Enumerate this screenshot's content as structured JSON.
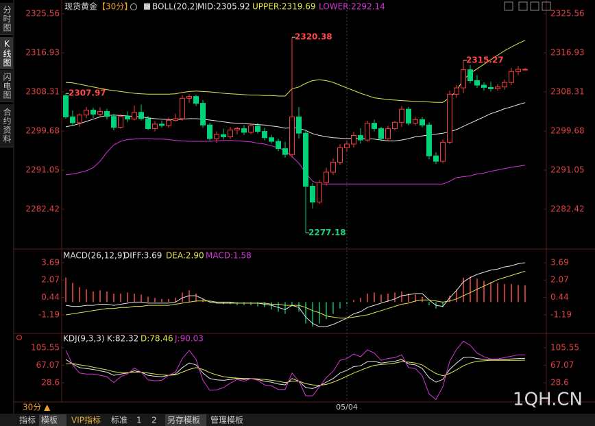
{
  "page": {
    "sidebar": [
      "分时图",
      "K线图",
      "闪电图",
      "合约资料"
    ],
    "period_button": "30分 ▲",
    "tabs": [
      "指标",
      "模板",
      "VIP指标",
      "标准",
      "1",
      "2",
      "另存模板",
      "管理模板"
    ],
    "watermark": "1QH.CN"
  },
  "chart_data": [
    {
      "type": "candlestick",
      "title": "现货黄金",
      "period": "【30分】",
      "indicator": "BOLL(20,2)",
      "up_color": "#ff3b3b",
      "down_color": "#00d27a",
      "categories": [
        null,
        null,
        null,
        null,
        null,
        null,
        null,
        null,
        null,
        null,
        null,
        null,
        null,
        null,
        null,
        null,
        null,
        null,
        null,
        null,
        null,
        null,
        null,
        null,
        null,
        null,
        null,
        null,
        null,
        null,
        null,
        null,
        null,
        null,
        null,
        null,
        null,
        null,
        null,
        null,
        null,
        "05/04",
        null,
        null,
        null,
        null,
        null,
        null,
        null,
        null,
        null,
        null,
        null,
        null,
        null,
        null,
        null,
        null,
        null,
        null,
        null,
        null,
        null,
        null,
        null,
        null,
        null,
        null
      ],
      "open": [
        2307.5,
        2302.8,
        2301.5,
        2303.2,
        2304.3,
        2303.4,
        2304.0,
        2302.9,
        2300.5,
        2302.9,
        2302.3,
        2303.8,
        2302.4,
        2300.2,
        2301.2,
        2300.9,
        2302.0,
        2302.4,
        2306.9,
        2307.3,
        2305.8,
        2301.0,
        2298.0,
        2298.9,
        2298.4,
        2299.9,
        2300.2,
        2299.4,
        2300.8,
        2299.6,
        2298.2,
        2297.4,
        2295.8,
        2294.5,
        2302.8,
        2299.2,
        2287.5,
        2284.0,
        2288.3,
        2290.6,
        2292.8,
        2296.0,
        2296.8,
        2298.7,
        2297.7,
        2301.4,
        2300.2,
        2298.0,
        2300.2,
        2301.6,
        2304.5,
        2301.4,
        2302.2,
        2301.0,
        2294.2,
        2293.0,
        2297.2,
        2307.8,
        2309.2,
        2313.2,
        2310.8,
        2309.8,
        2309.3,
        2309.0,
        2309.4,
        2310.4,
        2312.8,
        2313.3
      ],
      "high": [
        2307.97,
        2304.2,
        2303.6,
        2305.0,
        2304.8,
        2304.9,
        2304.6,
        2303.5,
        2303.4,
        2304.0,
        2305.3,
        2305.5,
        2303.0,
        2301.8,
        2302.0,
        2302.6,
        2303.5,
        2307.6,
        2307.8,
        2307.7,
        2306.5,
        2301.5,
        2299.6,
        2300.2,
        2300.6,
        2300.6,
        2301.0,
        2301.2,
        2301.5,
        2300.4,
        2298.8,
        2298.0,
        2297.3,
        2320.38,
        2305.0,
        2300.0,
        2288.2,
        2288.9,
        2291.6,
        2293.6,
        2296.8,
        2297.6,
        2299.5,
        2300.3,
        2302.0,
        2302.2,
        2300.6,
        2300.8,
        2302.0,
        2305.2,
        2305.0,
        2302.8,
        2302.8,
        2301.6,
        2295.0,
        2297.8,
        2308.6,
        2309.8,
        2315.27,
        2314.2,
        2312.0,
        2310.4,
        2310.6,
        2310.0,
        2311.0,
        2313.6,
        2314.0,
        2313.6
      ],
      "low": [
        2302.4,
        2300.8,
        2300.6,
        2302.5,
        2302.6,
        2302.8,
        2302.2,
        2299.8,
        2300.2,
        2301.6,
        2302.0,
        2302.0,
        2299.9,
        2299.6,
        2300.4,
        2300.4,
        2301.8,
        2302.0,
        2305.9,
        2305.2,
        2300.4,
        2297.4,
        2297.1,
        2297.8,
        2297.9,
        2298.9,
        2298.8,
        2299.0,
        2299.1,
        2297.6,
        2296.9,
        2295.2,
        2293.8,
        2294.0,
        2298.0,
        2277.18,
        2282.6,
        2283.6,
        2287.7,
        2290.0,
        2292.2,
        2295.2,
        2296.0,
        2296.9,
        2297.3,
        2299.6,
        2297.4,
        2297.5,
        2299.8,
        2300.6,
        2300.9,
        2300.9,
        2300.5,
        2293.4,
        2292.4,
        2292.6,
        2296.8,
        2307.0,
        2308.0,
        2310.2,
        2309.2,
        2308.6,
        2308.4,
        2308.6,
        2308.8,
        2309.8,
        2312.0,
        2313.0
      ],
      "close": [
        2302.8,
        2301.5,
        2303.2,
        2304.3,
        2303.4,
        2304.0,
        2302.9,
        2300.5,
        2302.9,
        2302.3,
        2303.8,
        2302.4,
        2300.2,
        2301.2,
        2300.9,
        2302.0,
        2302.4,
        2306.9,
        2307.3,
        2305.8,
        2301.0,
        2298.0,
        2298.9,
        2298.4,
        2299.9,
        2300.2,
        2299.4,
        2300.8,
        2299.6,
        2298.2,
        2297.4,
        2295.8,
        2294.5,
        2302.8,
        2299.2,
        2287.5,
        2284.0,
        2288.3,
        2290.6,
        2292.8,
        2296.0,
        2296.8,
        2298.7,
        2297.7,
        2301.4,
        2300.2,
        2298.0,
        2300.2,
        2301.6,
        2304.5,
        2301.4,
        2302.2,
        2301.0,
        2294.2,
        2293.0,
        2297.2,
        2307.8,
        2309.2,
        2313.2,
        2310.8,
        2309.8,
        2309.3,
        2309.0,
        2309.4,
        2310.4,
        2312.8,
        2313.3,
        2313.3
      ],
      "series": [
        {
          "name": "MID:2305.92",
          "color": "#e6e6e6",
          "values": [
            2300.6,
            2300.9,
            2301.3,
            2301.8,
            2302.3,
            2302.8,
            2303.1,
            2303.2,
            2303.1,
            2303.0,
            2302.9,
            2302.8,
            2302.6,
            2302.4,
            2302.3,
            2302.2,
            2302.2,
            2302.3,
            2302.4,
            2302.4,
            2302.3,
            2302.1,
            2301.9,
            2301.7,
            2301.5,
            2301.4,
            2301.3,
            2301.2,
            2301.1,
            2301.0,
            2300.8,
            2300.6,
            2300.3,
            2300.4,
            2300.3,
            2299.8,
            2299.1,
            2298.7,
            2298.4,
            2298.2,
            2298.1,
            2298.0,
            2298.1,
            2298.0,
            2298.0,
            2297.9,
            2297.7,
            2297.5,
            2297.5,
            2297.7,
            2298.0,
            2298.4,
            2298.6,
            2298.8,
            2299.0,
            2299.2,
            2299.5,
            2300.0,
            2300.7,
            2301.4,
            2302.1,
            2302.8,
            2303.5,
            2304.0,
            2304.6,
            2305.0,
            2305.5,
            2305.92
          ]
        },
        {
          "name": "UPPER:2319.69",
          "color": "#e4e44c",
          "values": [
            2310.4,
            2310.3,
            2310.0,
            2309.7,
            2309.4,
            2309.1,
            2308.8,
            2308.6,
            2308.4,
            2308.2,
            2308.0,
            2307.9,
            2307.8,
            2307.8,
            2307.8,
            2307.8,
            2307.9,
            2308.2,
            2308.4,
            2308.5,
            2308.4,
            2308.3,
            2308.2,
            2308.0,
            2307.9,
            2307.8,
            2307.7,
            2307.6,
            2307.6,
            2307.5,
            2307.5,
            2307.4,
            2307.4,
            2309.0,
            2309.4,
            2310.2,
            2310.8,
            2311.0,
            2310.8,
            2310.4,
            2309.8,
            2309.2,
            2308.6,
            2308.0,
            2307.5,
            2307.0,
            2306.8,
            2306.6,
            2306.5,
            2306.4,
            2306.3,
            2306.2,
            2306.2,
            2306.1,
            2306.0,
            2306.0,
            2307.0,
            2308.6,
            2311.0,
            2312.4,
            2313.4,
            2314.4,
            2315.4,
            2316.4,
            2317.4,
            2318.2,
            2319.0,
            2319.69
          ]
        },
        {
          "name": "LOWER:2292.14",
          "color": "#d535d5",
          "values": [
            2290.0,
            2290.2,
            2290.5,
            2290.9,
            2291.6,
            2293.0,
            2295.0,
            2296.6,
            2297.4,
            2297.8,
            2297.9,
            2298.0,
            2298.0,
            2297.9,
            2297.9,
            2297.8,
            2297.6,
            2297.5,
            2297.4,
            2297.4,
            2297.4,
            2297.4,
            2297.5,
            2297.6,
            2297.6,
            2297.5,
            2297.4,
            2297.3,
            2297.0,
            2296.8,
            2296.4,
            2296.0,
            2295.4,
            2294.0,
            2292.6,
            2290.4,
            2288.6,
            2288.0,
            2288.0,
            2288.0,
            2288.0,
            2288.0,
            2288.0,
            2288.0,
            2288.0,
            2288.0,
            2288.0,
            2288.0,
            2288.0,
            2288.0,
            2288.0,
            2288.0,
            2288.0,
            2288.0,
            2288.0,
            2288.0,
            2288.6,
            2289.4,
            2289.6,
            2289.8,
            2290.2,
            2290.4,
            2290.8,
            2291.1,
            2291.4,
            2291.7,
            2291.9,
            2292.14
          ]
        }
      ],
      "annotations": [
        {
          "value": 2307.97,
          "label": "2307.97"
        },
        {
          "value": 2320.38,
          "label": "2320.38"
        },
        {
          "value": 2315.27,
          "label": "2315.27"
        },
        {
          "value": 2277.18,
          "label": "2277.18"
        }
      ],
      "ylim": [
        2274.1,
        2327.07
      ],
      "yticks": [
        2282.42,
        2291.05,
        2299.68,
        {
          "value": 2308.31,
          "label": "2308.31"
        },
        2316.93,
        2325.56
      ]
    },
    {
      "type": "macd",
      "indicator": "MACD(26,12,9)",
      "up_color": "#ff4b4b",
      "down_color": "#00c46a",
      "series": [
        {
          "name": "DIFF:3.69",
          "color": "#e6e6e6",
          "values": [
            -0.3,
            -0.4,
            -0.4,
            -0.3,
            -0.3,
            -0.2,
            -0.2,
            -0.3,
            -0.2,
            -0.1,
            0.0,
            0.0,
            -0.1,
            -0.1,
            -0.1,
            -0.1,
            0.0,
            0.4,
            0.6,
            0.6,
            0.3,
            0.0,
            -0.1,
            -0.1,
            -0.1,
            -0.1,
            -0.1,
            -0.1,
            -0.1,
            -0.2,
            -0.3,
            -0.5,
            -0.7,
            -0.3,
            -0.5,
            -1.4,
            -2.0,
            -2.3,
            -2.3,
            -2.1,
            -1.8,
            -1.5,
            -1.1,
            -0.9,
            -0.5,
            -0.3,
            -0.1,
            0.1,
            0.3,
            0.6,
            0.7,
            0.8,
            0.8,
            0.2,
            -0.3,
            -0.4,
            0.4,
            1.1,
            1.9,
            2.3,
            2.6,
            2.8,
            3.0,
            3.1,
            3.3,
            3.4,
            3.6,
            3.69
          ]
        },
        {
          "name": "DEA:2.90",
          "color": "#e4e44c",
          "values": [
            -1.2,
            -1.1,
            -1.0,
            -0.9,
            -0.8,
            -0.7,
            -0.6,
            -0.6,
            -0.5,
            -0.5,
            -0.4,
            -0.4,
            -0.3,
            -0.3,
            -0.3,
            -0.3,
            -0.2,
            -0.1,
            0.0,
            0.1,
            0.1,
            0.1,
            0.0,
            0.0,
            0.0,
            -0.1,
            -0.1,
            -0.1,
            -0.1,
            -0.1,
            -0.2,
            -0.2,
            -0.3,
            -0.3,
            -0.3,
            -0.5,
            -0.8,
            -1.0,
            -1.3,
            -1.4,
            -1.5,
            -1.5,
            -1.4,
            -1.3,
            -1.2,
            -1.0,
            -0.8,
            -0.6,
            -0.4,
            -0.2,
            -0.1,
            0.1,
            0.2,
            0.2,
            0.1,
            0.0,
            0.1,
            0.3,
            0.6,
            0.9,
            1.2,
            1.5,
            1.8,
            2.1,
            2.3,
            2.5,
            2.7,
            2.9
          ]
        },
        {
          "name": "MACD:1.58",
          "color": "#d535d5",
          "style": "bar",
          "values": [
            2.3,
            1.8,
            1.4,
            1.2,
            1.0,
            1.1,
            1.0,
            0.8,
            0.8,
            0.9,
            0.8,
            0.7,
            0.5,
            0.4,
            0.3,
            0.3,
            0.4,
            0.9,
            1.1,
            0.8,
            0.3,
            0.1,
            -0.1,
            -0.2,
            -0.2,
            -0.3,
            -0.3,
            -0.3,
            -0.4,
            -0.5,
            -0.7,
            -0.9,
            -1.1,
            -0.4,
            -0.9,
            -2.0,
            -2.3,
            -2.0,
            -1.6,
            -1.1,
            -0.6,
            -0.2,
            0.2,
            0.4,
            0.8,
            0.9,
            0.7,
            0.8,
            0.9,
            1.0,
            0.8,
            0.7,
            0.5,
            -0.3,
            -0.6,
            -0.5,
            0.6,
            1.2,
            2.3,
            2.4,
            2.2,
            2.0,
            1.9,
            1.8,
            1.7,
            1.7,
            1.6,
            1.58
          ]
        }
      ],
      "ylim": [
        -2.87,
        4.85
      ],
      "yticks": [
        -1.19,
        0.44,
        2.07,
        3.69
      ]
    },
    {
      "type": "kdj",
      "indicator": "KDJ(9,3,3)",
      "series": [
        {
          "name": "K:82.32",
          "color": "#e6e6e6",
          "values": [
            80,
            70,
            62,
            60,
            58,
            55,
            52,
            45,
            48,
            50,
            55,
            52,
            45,
            43,
            42,
            45,
            48,
            62,
            72,
            68,
            50,
            38,
            35,
            34,
            36,
            38,
            36,
            38,
            36,
            32,
            30,
            26,
            24,
            38,
            32,
            18,
            16,
            22,
            30,
            38,
            50,
            56,
            64,
            66,
            75,
            76,
            72,
            74,
            76,
            80,
            70,
            68,
            60,
            40,
            30,
            36,
            58,
            72,
            84,
            85,
            82,
            80,
            79,
            79,
            80,
            81,
            82,
            82.32
          ]
        },
        {
          "name": "D:78.46",
          "color": "#e4e44c",
          "values": [
            70,
            71,
            68,
            66,
            63,
            60,
            57,
            53,
            51,
            51,
            52,
            52,
            50,
            48,
            46,
            45,
            46,
            52,
            58,
            62,
            58,
            51,
            46,
            42,
            40,
            39,
            38,
            38,
            37,
            36,
            34,
            32,
            29,
            32,
            32,
            27,
            24,
            23,
            25,
            30,
            36,
            43,
            50,
            56,
            62,
            67,
            69,
            70,
            72,
            75,
            74,
            72,
            68,
            58,
            49,
            44,
            49,
            57,
            66,
            72,
            76,
            77,
            78,
            78,
            78,
            78,
            78,
            78.46
          ]
        },
        {
          "name": "J:90.03",
          "color": "#d535d5",
          "values": [
            100,
            68,
            50,
            48,
            48,
            45,
            42,
            29,
            42,
            48,
            61,
            52,
            35,
            33,
            34,
            45,
            52,
            82,
            100,
            80,
            34,
            12,
            13,
            18,
            28,
            36,
            32,
            38,
            34,
            24,
            22,
            14,
            14,
            50,
            32,
            0,
            0,
            20,
            40,
            54,
            78,
            82,
            92,
            86,
            101,
            94,
            78,
            82,
            84,
            90,
            62,
            60,
            44,
            4,
            -8,
            20,
            76,
            102,
            120,
            111,
            94,
            86,
            81,
            81,
            84,
            87,
            90,
            90.03
          ]
        }
      ],
      "ylim": [
        -12.1,
        134.2
      ],
      "yticks": [
        28.6,
        67.07,
        105.55
      ]
    }
  ]
}
